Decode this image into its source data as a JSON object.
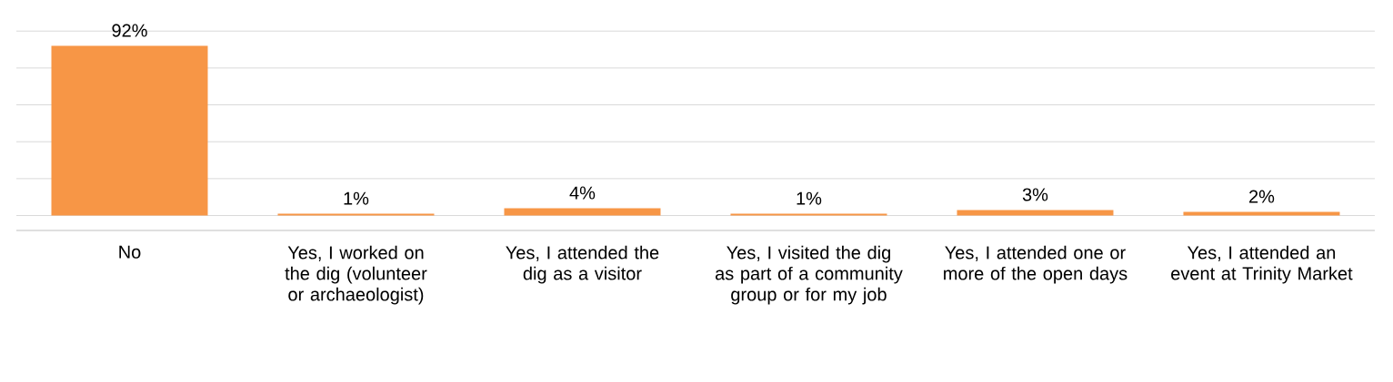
{
  "chart_data": {
    "type": "bar",
    "categories": [
      "No",
      "Yes, I worked on the dig (volunteer or archaeologist)",
      "Yes, I attended the dig as a visitor",
      "Yes, I visited the dig as part of a community group or for my job",
      "Yes, I attended one or more of the open days",
      "Yes, I attended an event at Trinity Market"
    ],
    "values": [
      92,
      1,
      4,
      1,
      3,
      2
    ],
    "value_labels": [
      "92%",
      "1%",
      "4%",
      "1%",
      "3%",
      "2%"
    ],
    "color": "#f79646",
    "grid": "y",
    "tick_labels": "x"
  }
}
